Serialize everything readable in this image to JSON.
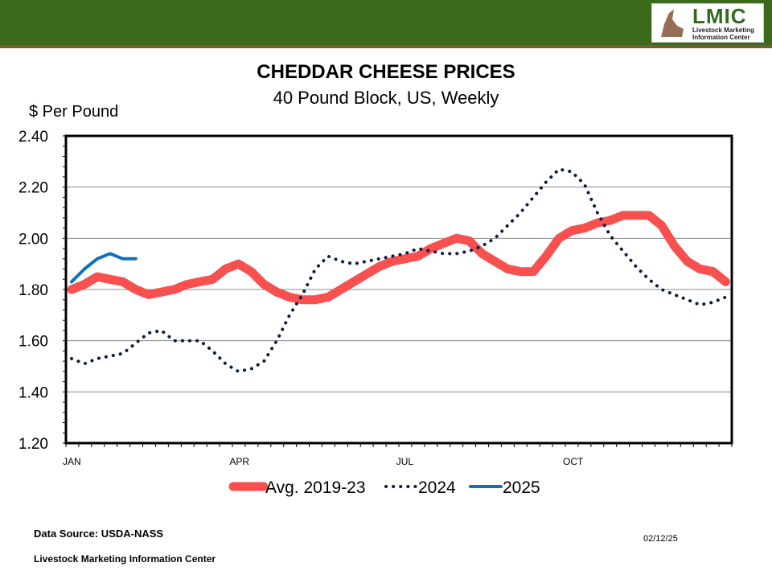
{
  "header": {
    "logo_text": "LMIC",
    "logo_subtext": "Livestock Marketing Information Center",
    "bar_color": "#3c6a1c"
  },
  "chart_data": {
    "type": "line",
    "title": "CHEDDAR CHEESE PRICES",
    "subtitle": "40 Pound Block, US, Weekly",
    "ylabel": "$ Per Pound",
    "xlabel": "",
    "ylim": [
      1.2,
      2.4
    ],
    "yticks": [
      "1.20",
      "1.40",
      "1.60",
      "1.80",
      "2.00",
      "2.20",
      "2.40"
    ],
    "xtick_labels": [
      {
        "week": 0,
        "label": "JAN"
      },
      {
        "week": 13,
        "label": "APR"
      },
      {
        "week": 26,
        "label": "JUL"
      },
      {
        "week": 39,
        "label": "OCT"
      }
    ],
    "grid": true,
    "legend_placement": "bottom",
    "series": [
      {
        "name": "Avg. 2019-23",
        "color": "#f84f4f",
        "style": "thick",
        "values": [
          1.8,
          1.82,
          1.85,
          1.84,
          1.83,
          1.8,
          1.78,
          1.79,
          1.8,
          1.82,
          1.83,
          1.84,
          1.88,
          1.9,
          1.87,
          1.82,
          1.79,
          1.77,
          1.76,
          1.76,
          1.77,
          1.8,
          1.83,
          1.86,
          1.89,
          1.91,
          1.92,
          1.93,
          1.96,
          1.98,
          2.0,
          1.99,
          1.94,
          1.91,
          1.88,
          1.87,
          1.87,
          1.93,
          2.0,
          2.03,
          2.04,
          2.06,
          2.07,
          2.09,
          2.09,
          2.09,
          2.05,
          1.97,
          1.91,
          1.88,
          1.87,
          1.83
        ]
      },
      {
        "name": "2024",
        "color": "#0d1b3e",
        "style": "dotted",
        "values": [
          1.53,
          1.51,
          1.53,
          1.54,
          1.55,
          1.59,
          1.63,
          1.64,
          1.6,
          1.6,
          1.6,
          1.56,
          1.51,
          1.48,
          1.49,
          1.52,
          1.6,
          1.7,
          1.78,
          1.88,
          1.93,
          1.91,
          1.9,
          1.91,
          1.92,
          1.93,
          1.94,
          1.96,
          1.95,
          1.94,
          1.94,
          1.95,
          1.97,
          2.0,
          2.05,
          2.1,
          2.16,
          2.22,
          2.27,
          2.26,
          2.21,
          2.1,
          2.01,
          1.95,
          1.89,
          1.84,
          1.8,
          1.78,
          1.76,
          1.74,
          1.75,
          1.77
        ]
      },
      {
        "name": "2025",
        "color": "#1071b8",
        "style": "solid",
        "values": [
          1.83,
          1.88,
          1.92,
          1.94,
          1.92,
          1.92
        ]
      }
    ]
  },
  "footer": {
    "source": "Data Source:  USDA-NASS",
    "org": "Livestock Marketing Information Center",
    "date": "02/12/25"
  }
}
